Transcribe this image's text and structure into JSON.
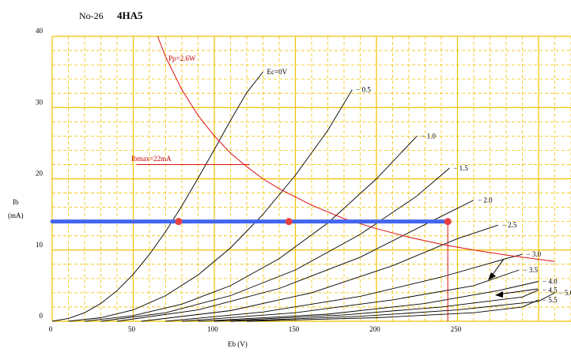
{
  "header": {
    "number": "No-26",
    "tube": "4HA5"
  },
  "chart_data": {
    "type": "line",
    "title": "4HA5",
    "xlabel": "Eb (V)",
    "ylabel": "Ib",
    "ylabel_unit": "(mA)",
    "xlim": [
      0,
      320
    ],
    "ylim": [
      0,
      40
    ],
    "x_ticks": [
      0,
      50,
      100,
      150,
      200,
      250
    ],
    "y_ticks": [
      0,
      10,
      20,
      30,
      40
    ],
    "grid": true,
    "grid_color": "#f2c200",
    "series": [
      {
        "name": "Ec=0V",
        "label": "Ec=0V",
        "x": [
          0,
          10,
          20,
          30,
          40,
          50,
          60,
          70,
          80,
          90,
          100,
          110,
          120,
          130
        ],
        "y": [
          0,
          0.4,
          1.2,
          2.5,
          4.3,
          6.6,
          9.4,
          12.6,
          16.2,
          20.1,
          24.1,
          28.2,
          32.1,
          35.0
        ]
      },
      {
        "name": "-0.5",
        "label": "− 0.5",
        "x": [
          10,
          30,
          50,
          70,
          90,
          110,
          130,
          150,
          170,
          185
        ],
        "y": [
          0,
          0.5,
          1.6,
          3.6,
          6.5,
          10.3,
          15.0,
          20.5,
          26.8,
          32.5
        ]
      },
      {
        "name": "-1.0",
        "label": "− 1.0",
        "x": [
          20,
          50,
          80,
          110,
          140,
          170,
          200,
          225
        ],
        "y": [
          0,
          0.8,
          2.4,
          5.0,
          8.8,
          13.8,
          20.0,
          26.0
        ]
      },
      {
        "name": "-1.5",
        "label": "− 1.5",
        "x": [
          30,
          70,
          110,
          150,
          190,
          225,
          245
        ],
        "y": [
          0,
          1.2,
          3.6,
          7.2,
          12.2,
          17.6,
          21.5
        ]
      },
      {
        "name": "-2.0",
        "label": "− 2.0",
        "x": [
          40,
          90,
          140,
          190,
          230,
          260
        ],
        "y": [
          0,
          1.6,
          4.6,
          9.0,
          13.6,
          17.0
        ]
      },
      {
        "name": "-2.5",
        "label": "− 2.5",
        "x": [
          55,
          110,
          160,
          210,
          250,
          275
        ],
        "y": [
          0,
          1.5,
          4.0,
          7.8,
          11.6,
          13.5
        ]
      },
      {
        "name": "-3.0",
        "label": "− 3.0",
        "x": [
          70,
          130,
          190,
          240,
          280,
          290
        ],
        "y": [
          0,
          1.3,
          3.5,
          6.2,
          8.8,
          9.4
        ]
      },
      {
        "name": "-3.5",
        "label": "− 3.5",
        "x": [
          80,
          150,
          210,
          260,
          288
        ],
        "y": [
          0,
          1.2,
          3.0,
          5.0,
          7.2
        ]
      },
      {
        "name": "-4.0",
        "label": "− 4.0",
        "x": [
          90,
          170,
          230,
          275,
          300
        ],
        "y": [
          0,
          1.0,
          2.5,
          4.3,
          5.6
        ]
      },
      {
        "name": "-4.5",
        "label": "− 4.5",
        "x": [
          100,
          180,
          240,
          290,
          300
        ],
        "y": [
          0,
          0.9,
          2.0,
          3.4,
          4.4
        ]
      },
      {
        "name": "-5.0",
        "label": "− 5.0",
        "x": [
          110,
          190,
          250,
          300,
          310
        ],
        "y": [
          0,
          0.7,
          1.6,
          2.8,
          4.0
        ]
      },
      {
        "name": "-5.5",
        "label": "− 5.5",
        "x": [
          120,
          200,
          260,
          290,
          300
        ],
        "y": [
          0,
          0.5,
          1.2,
          2.0,
          3.0
        ]
      }
    ],
    "pp_curve": {
      "label": "Pp=2.6W",
      "x": [
        65,
        70,
        80,
        90,
        100,
        110,
        120,
        130,
        140,
        160,
        180,
        200,
        220,
        240,
        260,
        280,
        300,
        310
      ],
      "y": [
        40,
        37.1,
        32.5,
        28.9,
        26.0,
        23.6,
        21.7,
        20.0,
        18.6,
        16.3,
        14.4,
        13.0,
        11.8,
        10.8,
        10.0,
        9.3,
        8.7,
        8.4
      ]
    },
    "ibmax": {
      "label": "Ibmax=22mA",
      "value": 22,
      "x_range": [
        52,
        122
      ]
    },
    "load_line": {
      "value": 14,
      "x_range": [
        0,
        244
      ],
      "color": "#4466ee"
    },
    "operating_points": [
      {
        "x": 78,
        "y": 14
      },
      {
        "x": 146,
        "y": 14
      },
      {
        "x": 244,
        "y": 14
      }
    ],
    "vertical_marker": {
      "x": 244,
      "y_range": [
        0,
        14
      ]
    }
  }
}
